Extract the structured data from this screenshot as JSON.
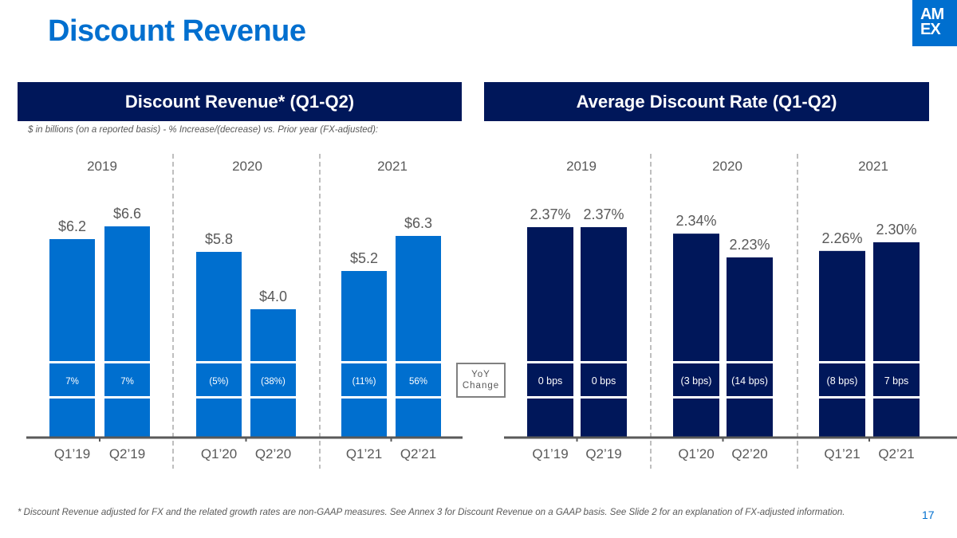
{
  "page": {
    "title": "Discount Revenue",
    "logo_text_line1": "AM",
    "logo_text_line2": "EX",
    "page_number": "17",
    "footnote": "* Discount Revenue adjusted for FX and the related growth rates are non-GAAP measures. See Annex 3 for Discount Revenue on a GAAP basis. See Slide 2 for an explanation of FX-adjusted information.",
    "subnote": "$ in billions (on a reported basis) - % Increase/(decrease) vs. Prior year (FX-adjusted):",
    "yoy_label_line1": "YoY",
    "yoy_label_line2": "Change",
    "colors": {
      "title": "#006fcf",
      "header_bg": "#00175a",
      "left_bar": "#006fcf",
      "right_bar": "#00175a",
      "text": "#595959"
    }
  },
  "chart_data": [
    {
      "type": "bar",
      "title": "Discount Revenue* (Q1-Q2)",
      "unit": "$ in billions",
      "groups": [
        "2019",
        "2020",
        "2021"
      ],
      "categories": [
        "Q1’19",
        "Q2’19",
        "Q1’20",
        "Q2’20",
        "Q1’21",
        "Q2’21"
      ],
      "values": [
        6.2,
        6.6,
        5.8,
        4.0,
        5.2,
        6.3
      ],
      "value_labels": [
        "$6.2",
        "$6.6",
        "$5.8",
        "$4.0",
        "$5.2",
        "$6.3"
      ],
      "yoy_change": [
        "7%",
        "7%",
        "(5%)",
        "(38%)",
        "(11%)",
        "56%"
      ],
      "ylim": [
        0,
        7
      ]
    },
    {
      "type": "bar",
      "title": "Average Discount Rate (Q1-Q2)",
      "unit": "%",
      "groups": [
        "2019",
        "2020",
        "2021"
      ],
      "categories": [
        "Q1’19",
        "Q2’19",
        "Q1’20",
        "Q2’20",
        "Q1’21",
        "Q2’21"
      ],
      "values": [
        2.37,
        2.37,
        2.34,
        2.23,
        2.26,
        2.3
      ],
      "value_labels": [
        "2.37%",
        "2.37%",
        "2.34%",
        "2.23%",
        "2.26%",
        "2.30%"
      ],
      "yoy_change": [
        "0 bps",
        "0 bps",
        "(3 bps)",
        "(14 bps)",
        "(8 bps)",
        "7 bps"
      ],
      "ylim": [
        0,
        2.4
      ]
    }
  ]
}
